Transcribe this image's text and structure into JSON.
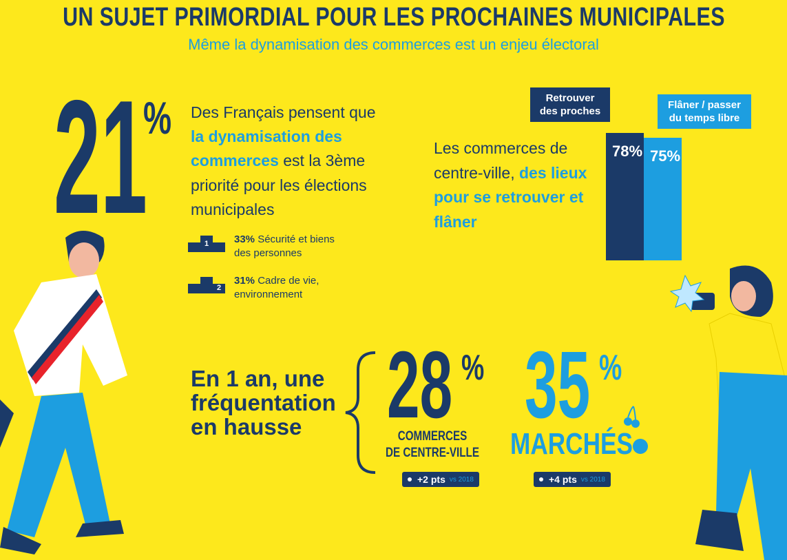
{
  "header": {
    "title": "UN SUJET PRIMORDIAL POUR LES PROCHAINES MUNICIPALES",
    "subtitle": "Même la dynamisation des commerces est un enjeu électoral"
  },
  "priority": {
    "figure": "21",
    "unit": "%",
    "lines": [
      [
        {
          "text": "Des Français pensent que",
          "highlight": false
        }
      ],
      [
        {
          "text": "la dynamisation des",
          "highlight": true
        }
      ],
      [
        {
          "text": "commerces",
          "highlight": true
        },
        {
          "text": " est la 3ème",
          "highlight": false
        }
      ],
      [
        {
          "text": "priorité pour les élections",
          "highlight": false
        }
      ],
      [
        {
          "text": "municipales",
          "highlight": false
        }
      ]
    ],
    "ranks": [
      {
        "rank": "1",
        "share": "33%",
        "label_lines": [
          "Sécurité et biens",
          "des personnes"
        ]
      },
      {
        "rank": "2",
        "share": "31%",
        "label_lines": [
          "Cadre de vie,",
          "environnement"
        ]
      }
    ]
  },
  "places": {
    "lines": [
      [
        {
          "text": "Les commerces de",
          "highlight": false
        }
      ],
      [
        {
          "text": "centre-ville, ",
          "highlight": false
        },
        {
          "text": "des lieux",
          "highlight": true
        }
      ],
      [
        {
          "text": "pour se retrouver et",
          "highlight": true
        }
      ],
      [
        {
          "text": "flâner",
          "highlight": true
        }
      ]
    ]
  },
  "chart_data": {
    "type": "bar",
    "categories": [
      "Retrouver des proches",
      "Flâner / passer du temps libre"
    ],
    "values": [
      78,
      75
    ],
    "value_labels": [
      "78%",
      "75%"
    ],
    "colors": [
      "#1b3a68",
      "#1d9ee0"
    ]
  },
  "trend": {
    "heading": [
      "En 1 an, une",
      "fréquentation",
      "en hausse"
    ],
    "stats": [
      {
        "figure": "28",
        "unit": "%",
        "label_lines": [
          "COMMERCES",
          "DE CENTRE-VILLE"
        ],
        "change": "+2 pts",
        "reference": "vs 2018"
      },
      {
        "figure": "35",
        "unit": "%",
        "label_lines": [
          "MARCHÉS"
        ],
        "change": "+4 pts",
        "reference": "vs 2018"
      }
    ]
  }
}
